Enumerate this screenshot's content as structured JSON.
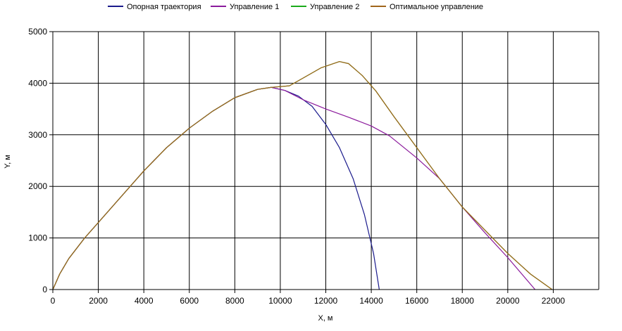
{
  "chart_data": {
    "type": "line",
    "xlabel": "X, м",
    "ylabel": "Y, м",
    "xlim": [
      0,
      24000
    ],
    "ylim": [
      0,
      5000
    ],
    "xticks": [
      0,
      2000,
      4000,
      6000,
      8000,
      10000,
      12000,
      14000,
      16000,
      18000,
      20000,
      22000
    ],
    "yticks": [
      0,
      1000,
      2000,
      3000,
      4000,
      5000
    ],
    "grid": true,
    "legend_position": "top",
    "series": [
      {
        "name": "Опорная траектория",
        "color": "#1a1a8c",
        "points": [
          [
            0,
            0
          ],
          [
            300,
            300
          ],
          [
            700,
            600
          ],
          [
            1400,
            1000
          ],
          [
            2000,
            1300
          ],
          [
            3000,
            1800
          ],
          [
            4000,
            2300
          ],
          [
            5000,
            2750
          ],
          [
            6000,
            3130
          ],
          [
            7000,
            3450
          ],
          [
            8000,
            3720
          ],
          [
            9000,
            3880
          ],
          [
            9600,
            3920
          ],
          [
            10200,
            3860
          ],
          [
            10800,
            3750
          ],
          [
            11400,
            3550
          ],
          [
            12000,
            3200
          ],
          [
            12600,
            2750
          ],
          [
            13200,
            2150
          ],
          [
            13700,
            1450
          ],
          [
            14100,
            700
          ],
          [
            14350,
            0
          ]
        ]
      },
      {
        "name": "Управление 1",
        "color": "#8b1a9c",
        "points": [
          [
            0,
            0
          ],
          [
            300,
            300
          ],
          [
            700,
            600
          ],
          [
            1400,
            1000
          ],
          [
            2000,
            1300
          ],
          [
            3000,
            1800
          ],
          [
            4000,
            2300
          ],
          [
            5000,
            2750
          ],
          [
            6000,
            3130
          ],
          [
            7000,
            3450
          ],
          [
            8000,
            3720
          ],
          [
            9000,
            3880
          ],
          [
            9600,
            3920
          ],
          [
            10200,
            3860
          ],
          [
            11000,
            3680
          ],
          [
            12000,
            3500
          ],
          [
            13000,
            3340
          ],
          [
            14000,
            3170
          ],
          [
            14800,
            2980
          ],
          [
            16000,
            2550
          ],
          [
            17000,
            2150
          ],
          [
            18000,
            1600
          ],
          [
            19000,
            1100
          ],
          [
            20000,
            620
          ],
          [
            21200,
            0
          ]
        ]
      },
      {
        "name": "Управление 2",
        "color": "#1aaa1a",
        "points": [
          [
            0,
            0
          ],
          [
            300,
            300
          ],
          [
            700,
            600
          ],
          [
            1400,
            1000
          ],
          [
            2000,
            1300
          ],
          [
            3000,
            1800
          ],
          [
            4000,
            2300
          ],
          [
            5000,
            2750
          ],
          [
            6000,
            3130
          ],
          [
            7000,
            3450
          ],
          [
            8000,
            3720
          ],
          [
            9000,
            3880
          ],
          [
            9600,
            3920
          ],
          [
            10400,
            3950
          ],
          [
            11000,
            4100
          ],
          [
            11800,
            4300
          ],
          [
            12600,
            4420
          ],
          [
            13000,
            4380
          ],
          [
            13600,
            4150
          ],
          [
            14200,
            3850
          ],
          [
            15000,
            3350
          ],
          [
            16000,
            2750
          ],
          [
            17000,
            2150
          ],
          [
            18000,
            1600
          ],
          [
            19000,
            1150
          ],
          [
            20000,
            700
          ],
          [
            21000,
            300
          ],
          [
            21950,
            0
          ]
        ]
      },
      {
        "name": "Оптимальное управление",
        "color": "#a0651a",
        "points": [
          [
            0,
            0
          ],
          [
            300,
            300
          ],
          [
            700,
            600
          ],
          [
            1400,
            1000
          ],
          [
            2000,
            1300
          ],
          [
            3000,
            1800
          ],
          [
            4000,
            2300
          ],
          [
            5000,
            2750
          ],
          [
            6000,
            3130
          ],
          [
            7000,
            3450
          ],
          [
            8000,
            3720
          ],
          [
            9000,
            3880
          ],
          [
            9600,
            3920
          ],
          [
            10400,
            3950
          ],
          [
            11000,
            4100
          ],
          [
            11800,
            4300
          ],
          [
            12600,
            4420
          ],
          [
            13000,
            4380
          ],
          [
            13600,
            4150
          ],
          [
            14200,
            3850
          ],
          [
            15000,
            3350
          ],
          [
            16000,
            2750
          ],
          [
            17000,
            2150
          ],
          [
            18000,
            1600
          ],
          [
            19000,
            1150
          ],
          [
            20000,
            700
          ],
          [
            21000,
            300
          ],
          [
            21950,
            0
          ]
        ]
      }
    ]
  }
}
